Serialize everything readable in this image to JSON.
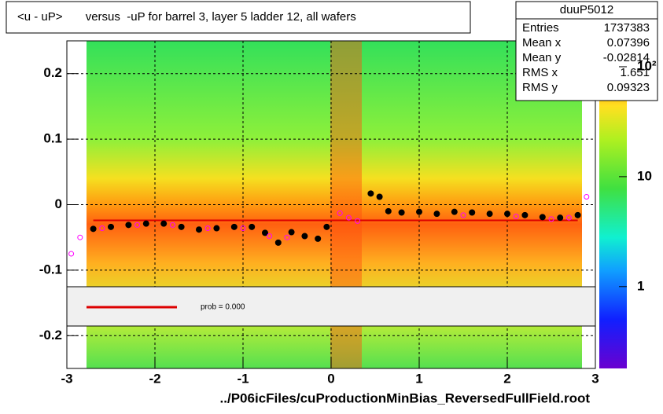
{
  "chart_data": {
    "type": "profile",
    "title": "<u - uP>       versus  -uP for barrel 3, layer 5 ladder 12, all wafers",
    "x_label": "../P06icFiles/cuProductionMinBias_ReversedFullField.root",
    "xlim": [
      -3,
      3
    ],
    "xticks": [
      -3,
      -2,
      -1,
      0,
      1,
      2,
      3
    ],
    "ylim": [
      -0.25,
      0.25
    ],
    "yticks": [
      -0.2,
      -0.1,
      0,
      0.1,
      0.2
    ],
    "grid": true,
    "zlim": [
      0.18,
      172
    ],
    "zscale": "log",
    "zticks": [
      1,
      10,
      {
        "value": 100,
        "label": "10²"
      }
    ],
    "series": [
      {
        "color": "#000000",
        "marker": "filled",
        "x": [
          -2.7,
          -2.5,
          -2.3,
          -2.1,
          -1.9,
          -1.7,
          -1.5,
          -1.3,
          -1.1,
          -0.9,
          -0.75,
          -0.6,
          -0.45,
          -0.3,
          -0.15,
          -0.05,
          0.45,
          0.55,
          0.65,
          0.8,
          1.0,
          1.2,
          1.4,
          1.6,
          1.8,
          2.0,
          2.2,
          2.4,
          2.6,
          2.8
        ],
        "values": [
          -0.037,
          -0.034,
          -0.031,
          -0.029,
          -0.029,
          -0.034,
          -0.038,
          -0.036,
          -0.034,
          -0.034,
          -0.043,
          -0.058,
          -0.042,
          -0.048,
          -0.052,
          -0.034,
          0.017,
          0.012,
          -0.01,
          -0.012,
          -0.011,
          -0.014,
          -0.011,
          -0.012,
          -0.014,
          -0.014,
          -0.016,
          -0.019,
          -0.02,
          -0.016
        ]
      },
      {
        "color": "#ff00ff",
        "marker": "open",
        "x": [
          -2.95,
          -2.85,
          -2.6,
          -2.2,
          -1.8,
          -1.4,
          -1.0,
          -0.7,
          -0.5,
          0.1,
          0.2,
          0.3,
          1.5,
          2.1,
          2.5,
          2.7,
          2.9
        ],
        "values": [
          -0.075,
          -0.05,
          -0.036,
          -0.031,
          -0.031,
          -0.036,
          -0.036,
          -0.048,
          -0.05,
          -0.013,
          -0.02,
          -0.025,
          -0.016,
          -0.018,
          -0.022,
          -0.02,
          0.012
        ]
      }
    ],
    "fit_line": {
      "color": "#dd0000",
      "x": [
        -2.7,
        2.8
      ],
      "values": [
        -0.024,
        -0.024
      ]
    },
    "legend_text": "prob = 0.000",
    "stats": {
      "title": "duuP5012",
      "rows": [
        [
          "Entries",
          "1737383"
        ],
        [
          "Mean x",
          "0.07396"
        ],
        [
          "Mean y",
          "-0.02814"
        ],
        [
          "RMS x",
          "1.651"
        ],
        [
          "RMS y",
          "0.09323"
        ]
      ]
    }
  }
}
